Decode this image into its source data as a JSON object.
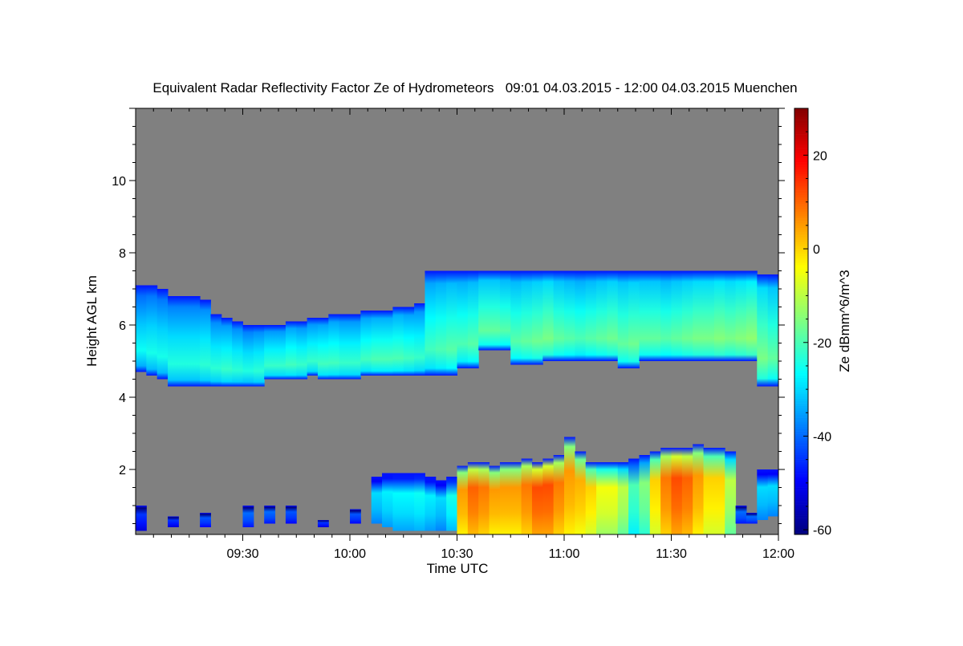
{
  "chart_data": {
    "type": "heatmap",
    "title": "Equivalent Radar Reflectivity Factor Ze of Hydrometeors   09:01 04.03.2015 - 12:00 04.03.2015 Muenchen",
    "xlabel": "Time UTC",
    "ylabel": "Height AGL km",
    "colorbar_label": "Ze dBmm^6/m^3",
    "colormap": "jet",
    "background_color": "#808080",
    "xlim_minutes_utc": [
      540,
      720
    ],
    "ylim_km": [
      0.2,
      12
    ],
    "clim_dbz": [
      -61,
      30
    ],
    "x_ticks": [
      {
        "minutes": 570,
        "label": "09:30"
      },
      {
        "minutes": 600,
        "label": "10:00"
      },
      {
        "minutes": 630,
        "label": "10:30"
      },
      {
        "minutes": 660,
        "label": "11:00"
      },
      {
        "minutes": 690,
        "label": "11:30"
      },
      {
        "minutes": 720,
        "label": "12:00"
      }
    ],
    "y_ticks": [
      {
        "value": 2,
        "label": "2"
      },
      {
        "value": 4,
        "label": "4"
      },
      {
        "value": 6,
        "label": "6"
      },
      {
        "value": 8,
        "label": "8"
      },
      {
        "value": 10,
        "label": "10"
      }
    ],
    "colorbar_ticks": [
      {
        "value": -60,
        "label": "-60"
      },
      {
        "value": -40,
        "label": "-40"
      },
      {
        "value": -20,
        "label": "-20"
      },
      {
        "value": 0,
        "label": "0"
      },
      {
        "value": 20,
        "label": "20"
      }
    ],
    "bin_minutes": 3,
    "bin_start_minutes": [
      540,
      543,
      546,
      549,
      552,
      555,
      558,
      561,
      564,
      567,
      570,
      573,
      576,
      579,
      582,
      585,
      588,
      591,
      594,
      597,
      600,
      603,
      606,
      609,
      612,
      615,
      618,
      621,
      624,
      627,
      630,
      633,
      636,
      639,
      642,
      645,
      648,
      651,
      654,
      657,
      660,
      663,
      666,
      669,
      672,
      675,
      678,
      681,
      684,
      687,
      690,
      693,
      696,
      699,
      702,
      705,
      708,
      711,
      714,
      717
    ],
    "upper_layer": {
      "top_km": [
        7.1,
        7.1,
        7.0,
        6.8,
        6.8,
        6.8,
        6.7,
        6.3,
        6.2,
        6.1,
        6.0,
        6.0,
        6.0,
        6.0,
        6.1,
        6.1,
        6.2,
        6.2,
        6.3,
        6.3,
        6.3,
        6.4,
        6.4,
        6.4,
        6.5,
        6.5,
        6.6,
        7.5,
        7.5,
        7.5,
        7.5,
        7.5,
        7.5,
        7.5,
        7.5,
        7.5,
        7.5,
        7.5,
        7.5,
        7.5,
        7.5,
        7.5,
        7.5,
        7.5,
        7.5,
        7.5,
        7.5,
        7.5,
        7.5,
        7.5,
        7.5,
        7.5,
        7.5,
        7.5,
        7.5,
        7.5,
        7.5,
        7.5,
        7.4,
        7.4
      ],
      "base_km": [
        4.7,
        4.6,
        4.5,
        4.3,
        4.3,
        4.3,
        4.3,
        4.3,
        4.3,
        4.3,
        4.3,
        4.3,
        4.5,
        4.5,
        4.5,
        4.5,
        4.6,
        4.5,
        4.5,
        4.5,
        4.5,
        4.6,
        4.6,
        4.6,
        4.6,
        4.6,
        4.6,
        4.6,
        4.6,
        4.6,
        4.8,
        4.8,
        5.3,
        5.3,
        5.3,
        4.9,
        4.9,
        4.9,
        5.0,
        5.0,
        5.0,
        5.0,
        5.0,
        5.0,
        5.0,
        4.8,
        4.8,
        5.0,
        5.0,
        5.0,
        5.0,
        5.0,
        5.0,
        5.0,
        5.0,
        5.0,
        5.0,
        5.0,
        4.3,
        4.3
      ],
      "core_ze_dbz": [
        -28,
        -27,
        -27,
        -26,
        -26,
        -26,
        -25,
        -25,
        -24,
        -25,
        -26,
        -25,
        -24,
        -24,
        -23,
        -24,
        -24,
        -23,
        -23,
        -24,
        -24,
        -23,
        -22,
        -22,
        -22,
        -23,
        -24,
        -23,
        -22,
        -21,
        -22,
        -21,
        -20,
        -20,
        -21,
        -21,
        -20,
        -19,
        -18,
        -20,
        -21,
        -22,
        -21,
        -20,
        -19,
        -20,
        -19,
        -20,
        -20,
        -21,
        -20,
        -19,
        -18,
        -18,
        -17,
        -18,
        -17,
        -16,
        -18,
        -20
      ]
    },
    "lower_layer": {
      "top_km": [
        1.0,
        0,
        0,
        0.7,
        0,
        0,
        0.8,
        0,
        0,
        0,
        1.0,
        0,
        1.0,
        0,
        1.0,
        0,
        0,
        0.6,
        0,
        0,
        0.9,
        0,
        1.8,
        1.9,
        1.9,
        1.9,
        1.9,
        1.8,
        1.7,
        1.8,
        2.1,
        2.2,
        2.2,
        2.1,
        2.2,
        2.2,
        2.3,
        2.2,
        2.3,
        2.4,
        2.9,
        2.5,
        2.2,
        2.2,
        2.2,
        2.2,
        2.3,
        2.4,
        2.5,
        2.6,
        2.6,
        2.6,
        2.7,
        2.6,
        2.6,
        2.5,
        1.0,
        0.8,
        2.0,
        2.0
      ],
      "base_km": [
        0.3,
        0,
        0,
        0.4,
        0,
        0,
        0.4,
        0,
        0,
        0,
        0.4,
        0,
        0.5,
        0,
        0.5,
        0,
        0,
        0.4,
        0,
        0,
        0.5,
        0,
        0.5,
        0.4,
        0.3,
        0.3,
        0.3,
        0.3,
        0.3,
        0.3,
        0.2,
        0.2,
        0.2,
        0.2,
        0.2,
        0.2,
        0.2,
        0.2,
        0.2,
        0.2,
        0.2,
        0.2,
        0.2,
        0.2,
        0.2,
        0.2,
        0.2,
        0.2,
        0.2,
        0.2,
        0.2,
        0.2,
        0.2,
        0.2,
        0.2,
        0.2,
        0.5,
        0.5,
        0.6,
        0.7
      ],
      "core_ze_dbz": [
        -45,
        null,
        null,
        -45,
        null,
        null,
        -42,
        null,
        null,
        null,
        -40,
        null,
        -40,
        null,
        -42,
        null,
        null,
        -45,
        null,
        null,
        -42,
        null,
        -30,
        -28,
        -27,
        -27,
        -26,
        -28,
        -30,
        -25,
        5,
        10,
        8,
        5,
        5,
        5,
        8,
        12,
        12,
        8,
        5,
        3,
        0,
        -5,
        -5,
        -10,
        -20,
        -15,
        0,
        8,
        12,
        10,
        5,
        0,
        0,
        -10,
        -40,
        -40,
        -30,
        -30
      ]
    }
  }
}
